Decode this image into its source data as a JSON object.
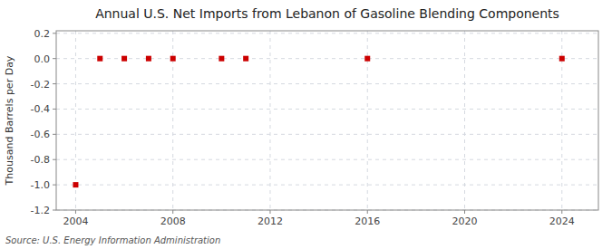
{
  "chart_data": {
    "type": "scatter",
    "title": "Annual U.S. Net Imports from Lebanon of Gasoline Blending Components",
    "y_label": "Thousand Barrels per Day",
    "annotations": [
      "Source: U.S. Energy Information Administration"
    ],
    "x": [
      2004,
      2005,
      2006,
      2007,
      2008,
      2010,
      2011,
      2016,
      2024
    ],
    "values": [
      -1.0,
      0.0,
      0.0,
      0.0,
      0.0,
      0.0,
      0.0,
      0.0,
      0.0
    ],
    "color": "#cc0000",
    "marker": "square",
    "xlim": [
      2003.2,
      2025.5
    ],
    "ylim": [
      -1.2,
      0.22
    ],
    "xticks": [
      2004,
      2008,
      2012,
      2016,
      2020,
      2024
    ],
    "yticks": [
      0.2,
      {
        "value": 0.0,
        "label": "0.0"
      },
      -0.2,
      -0.4,
      -0.6,
      -0.8,
      {
        "value": -1.0,
        "label": "-1.0"
      },
      -1.2
    ],
    "grid": true
  }
}
